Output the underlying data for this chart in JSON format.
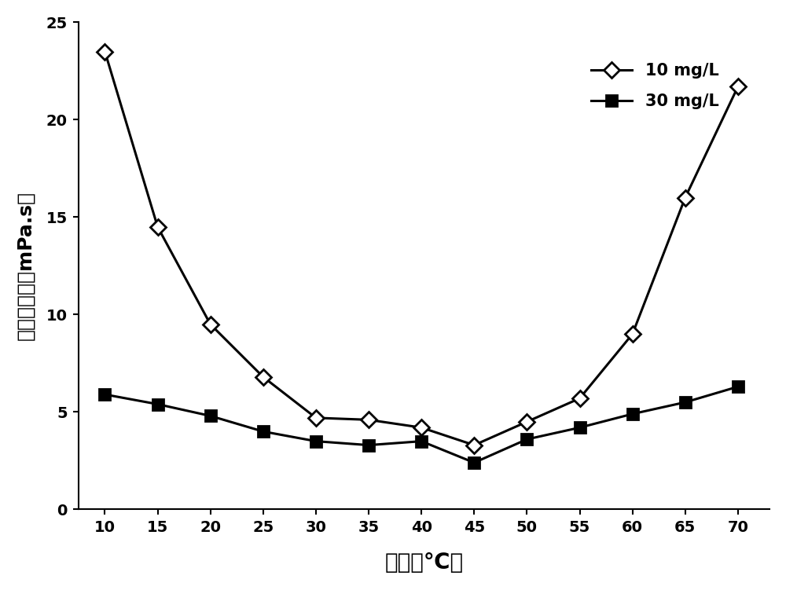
{
  "x": [
    10,
    15,
    20,
    25,
    30,
    35,
    40,
    45,
    50,
    55,
    60,
    65,
    70
  ],
  "series_10mgL": [
    23.5,
    14.5,
    9.5,
    6.8,
    4.7,
    4.6,
    4.2,
    3.3,
    4.5,
    5.7,
    9.0,
    16.0,
    21.7
  ],
  "series_30mgL": [
    5.9,
    5.4,
    4.8,
    4.0,
    3.5,
    3.3,
    3.5,
    2.4,
    3.6,
    4.2,
    4.9,
    5.5,
    6.3
  ],
  "xlabel": "温度（℃）",
  "ylabel": "破胶液粘度（mPa.s）",
  "legend_10": "10 mg/L",
  "legend_30": "30 mg/L",
  "ylim": [
    0,
    25
  ],
  "yticks": [
    0,
    5,
    10,
    15,
    20,
    25
  ],
  "xticks": [
    10,
    15,
    20,
    25,
    30,
    35,
    40,
    45,
    50,
    55,
    60,
    65,
    70
  ],
  "line_color": "#000000",
  "background_color": "#ffffff"
}
